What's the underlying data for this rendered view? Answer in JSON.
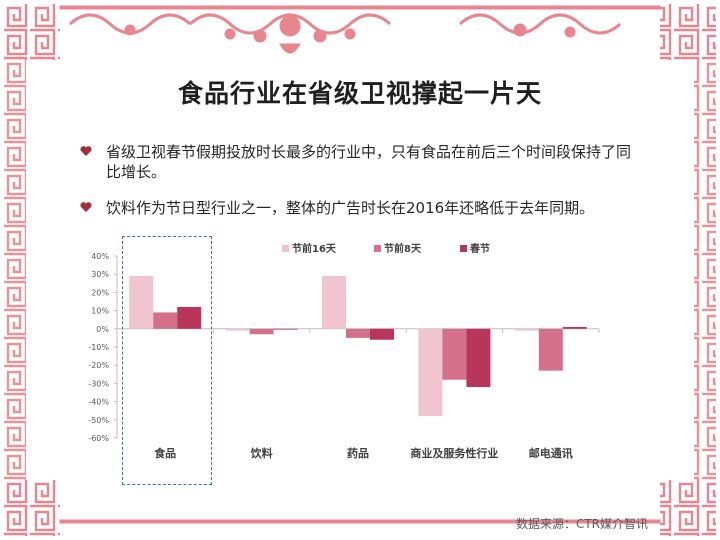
{
  "title": "食品行业在省级卫视撑起一片天",
  "bullets": [
    "省级卫视春节假期投放时长最多的行业中，只有食品在前后三个时间段保持了同比增长。",
    "饮料作为节日型行业之一，整体的广告时长在2016年还略低于去年同期。"
  ],
  "source": "数据来源：CTR媒介智讯",
  "colors": {
    "frame": "#e8868f",
    "bullet": "#a0303c",
    "highlight": "#2e75b6"
  },
  "chart_data": {
    "type": "bar",
    "categories": [
      "食品",
      "饮料",
      "药品",
      "商业及服务性行业",
      "邮电通讯"
    ],
    "series": [
      {
        "name": "节前16天",
        "color": "#f0c5d0",
        "values": [
          29,
          -1,
          29,
          -48,
          -1
        ]
      },
      {
        "name": "节前8天",
        "color": "#d4708a",
        "values": [
          9,
          -3,
          -5,
          -28,
          -23
        ]
      },
      {
        "name": "春节",
        "color": "#b8365c",
        "values": [
          12,
          0,
          -6,
          -32,
          1
        ]
      }
    ],
    "ylim": [
      -60,
      40
    ],
    "yticks": [
      "40%",
      "30%",
      "20%",
      "10%",
      "0%",
      "-10%",
      "-20%",
      "-30%",
      "-40%",
      "-50%",
      "-60%"
    ],
    "legend_position": "top",
    "grid": false
  }
}
